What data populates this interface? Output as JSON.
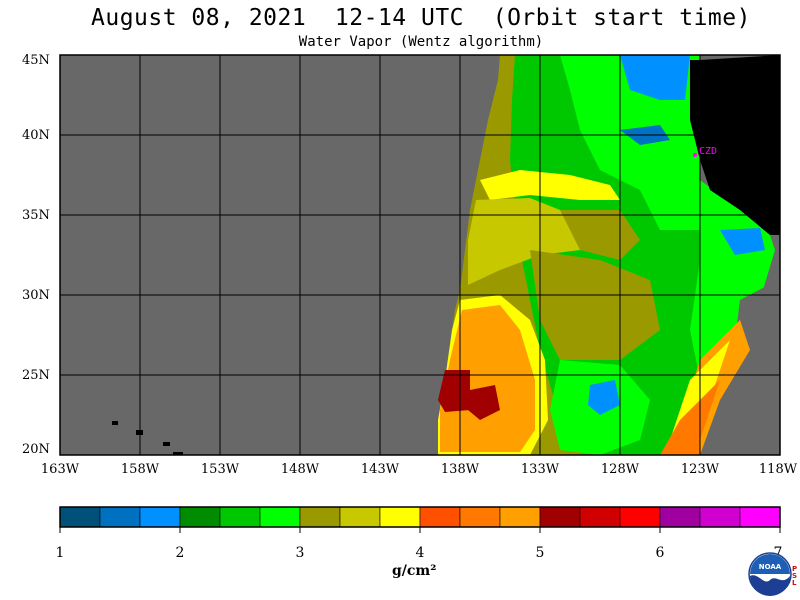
{
  "title": "August 08, 2021  12-14 UTC  (Orbit start time)",
  "subtitle": "Water Vapor (Wentz algorithm)",
  "lat_labels": [
    "45N",
    "40N",
    "35N",
    "30N",
    "25N",
    "20N"
  ],
  "lon_labels": [
    "163W",
    "158W",
    "153W",
    "148W",
    "143W",
    "138W",
    "133W",
    "128W",
    "123W",
    "118W"
  ],
  "station_label": "CZD",
  "colorbar": {
    "ticks": [
      "1",
      "2",
      "3",
      "4",
      "5",
      "6",
      "7"
    ],
    "units": "g/cm²",
    "colors": [
      "#00507a",
      "#0070c0",
      "#0090ff",
      "#008c00",
      "#00c800",
      "#00ff00",
      "#9a9a00",
      "#c8c800",
      "#ffff00",
      "#ff5000",
      "#ff7800",
      "#ffa000",
      "#a00000",
      "#d00000",
      "#ff0000",
      "#a000a0",
      "#d000d0",
      "#ff00ff"
    ]
  },
  "colors": {
    "no_data": "#686868",
    "land": "#000000",
    "grid": "#000000"
  },
  "logo": {
    "text": "NOAA",
    "side_text": "PSL"
  }
}
